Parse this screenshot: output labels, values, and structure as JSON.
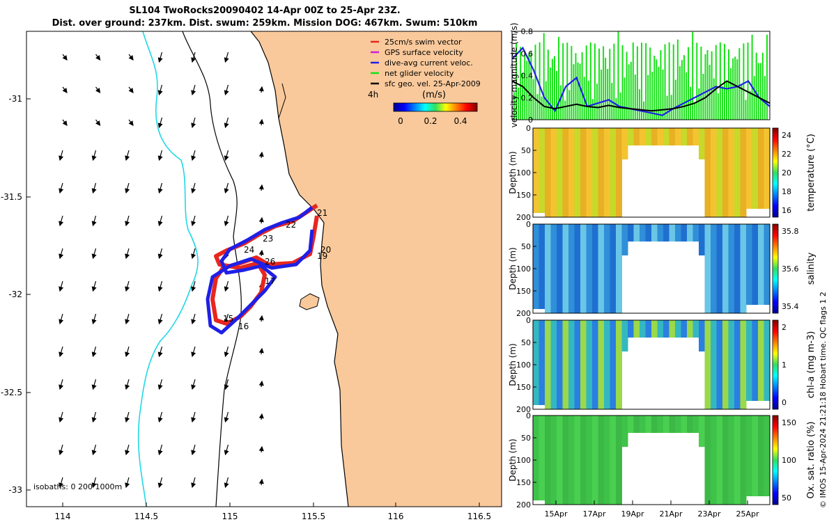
{
  "header": {
    "title_line1": "SL104 TwoRocks20090402 14-Apr 00Z to 25-Apr 23Z.",
    "title_line2": "Dist. over ground: 237km. Dist. swum: 259km. Mission DOG: 467km. Swum: 510km"
  },
  "credit": "© IMOS 15-Apr-2024 21:21:18 Hobart time. QC flags 1  2",
  "colors": {
    "land": "#f9c99b",
    "swim_vector": "#e8261e",
    "gps_velocity": "#d21dd2",
    "dive_avg": "#1f1fe6",
    "net_glider": "#16e016",
    "geo_vel": "#000000",
    "isobath_200": "#1fd8e6",
    "volume_green": "#3fc24a"
  },
  "map": {
    "legend": [
      {
        "label": "25cm/s swim vector",
        "color": "#e8261e"
      },
      {
        "label": "GPS surface velocity",
        "color": "#d21dd2"
      },
      {
        "label": "dive-avg current veloc.",
        "color": "#1f1fe6"
      },
      {
        "label": "net glider velocity",
        "color": "#16e016"
      },
      {
        "label": "sfc geo. vel. 25-Apr-2009",
        "color": "#000000"
      }
    ],
    "legend_side_label": "4h",
    "colorbar_title": "(m/s)",
    "colorbar_ticks": [
      "0",
      "0.2",
      "0.4"
    ],
    "isobaths_label": "isobaths: 0   200  1000m",
    "x_ticks": [
      "114",
      "114.5",
      "115",
      "115.5",
      "116",
      "116.5"
    ],
    "y_ticks": [
      "-31",
      "-31.5",
      "-32",
      "-32.5",
      "-33"
    ],
    "day_labels": [
      "15",
      "16",
      "17",
      "19",
      "20",
      "21",
      "22",
      "23",
      "24",
      "26"
    ]
  },
  "chart_data": [
    {
      "type": "line",
      "ylabel": "velocity magnitude (m/s)",
      "ylim": [
        0,
        0.8
      ],
      "y_ticks": [
        "0",
        "0.2",
        "0.4",
        "0.6",
        "0.8"
      ],
      "series": [
        {
          "name": "dive-avg current veloc.",
          "color": "#1f1fe6",
          "x": [
            0,
            0.5,
            1,
            1.5,
            2,
            2.5,
            3,
            3.5,
            4,
            4.5,
            5,
            5.5,
            6,
            6.5,
            7,
            7.5,
            8,
            8.5,
            9,
            9.5,
            10,
            10.5,
            11,
            11.5,
            12
          ],
          "values": [
            0.55,
            0.65,
            0.45,
            0.2,
            0.08,
            0.3,
            0.38,
            0.12,
            0.15,
            0.18,
            0.12,
            0.1,
            0.08,
            0.06,
            0.04,
            0.1,
            0.15,
            0.2,
            0.25,
            0.3,
            0.28,
            0.3,
            0.35,
            0.2,
            0.12
          ]
        },
        {
          "name": "sfc geo. vel.",
          "color": "#000000",
          "x": [
            0,
            0.5,
            1,
            1.5,
            2,
            2.5,
            3,
            3.5,
            4,
            4.5,
            5,
            5.5,
            6,
            6.5,
            7,
            7.5,
            8,
            8.5,
            9,
            9.5,
            10,
            10.5,
            11,
            11.5,
            12
          ],
          "values": [
            0.35,
            0.3,
            0.2,
            0.12,
            0.1,
            0.12,
            0.14,
            0.12,
            0.11,
            0.13,
            0.11,
            0.1,
            0.09,
            0.08,
            0.09,
            0.1,
            0.12,
            0.15,
            0.2,
            0.28,
            0.35,
            0.3,
            0.25,
            0.2,
            0.15
          ]
        }
      ]
    },
    {
      "type": "heatmap",
      "ylabel": "Depth (m)",
      "cblabel": "temperature (°C)",
      "y_ticks": [
        "0",
        "50",
        "100",
        "150",
        "200"
      ],
      "cb_ticks": [
        "16",
        "18",
        "20",
        "22",
        "24"
      ]
    },
    {
      "type": "heatmap",
      "ylabel": "Depth (m)",
      "cblabel": "salinity",
      "y_ticks": [
        "0",
        "50",
        "100",
        "150",
        "200"
      ],
      "cb_ticks": [
        "35.4",
        "35.6",
        "35.8"
      ]
    },
    {
      "type": "heatmap",
      "ylabel": "Depth (m)",
      "cblabel": "chl-a (mg m-3)",
      "y_ticks": [
        "0",
        "50",
        "100",
        "150",
        "200"
      ],
      "cb_ticks": [
        "0",
        "1",
        "2"
      ]
    },
    {
      "type": "heatmap",
      "ylabel": "Depth (m)",
      "cblabel": "Ox. sat. ratio (%)",
      "y_ticks": [
        "0",
        "50",
        "100",
        "150",
        "200"
      ],
      "cb_ticks": [
        "50",
        "100",
        "150"
      ]
    }
  ],
  "time_axis": [
    "15Apr",
    "17Apr",
    "19Apr",
    "21Apr",
    "23Apr",
    "25Apr"
  ]
}
